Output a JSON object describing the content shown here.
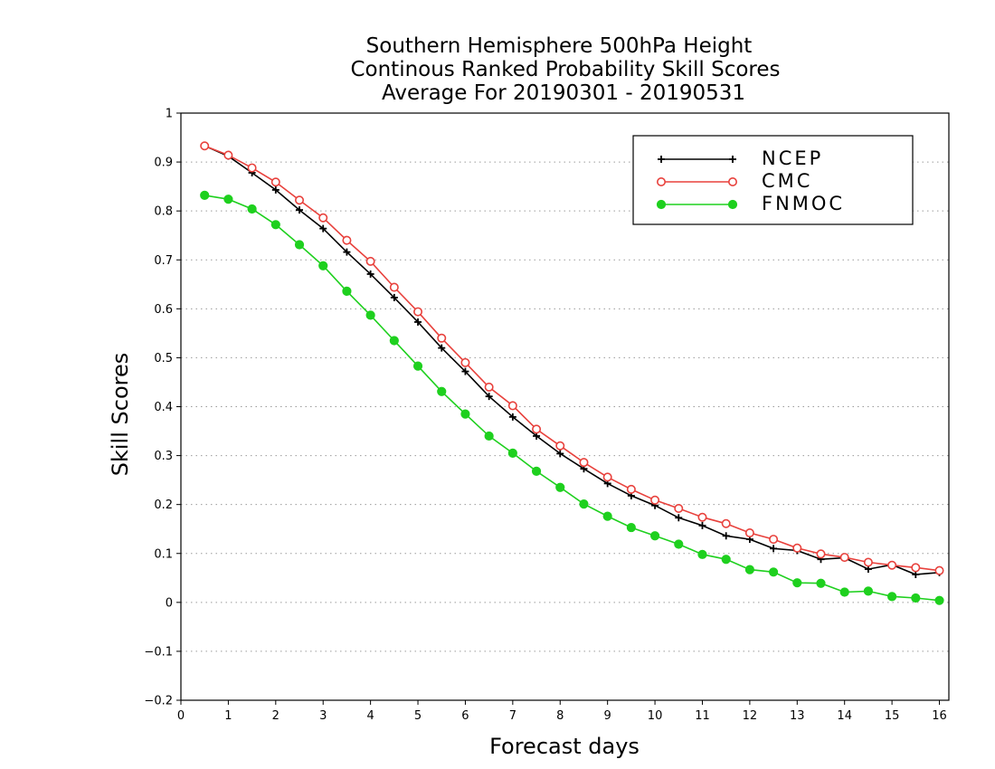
{
  "chart_data": {
    "type": "line",
    "title": [
      "Southern Hemisphere 500hPa Height",
      "Continous Ranked Probability Skill Scores",
      "Average For 20190301 - 20190531"
    ],
    "xlabel": "Forecast days",
    "ylabel": "Skill Scores",
    "xlim": [
      0,
      16.2
    ],
    "ylim": [
      -0.2,
      1
    ],
    "xticks": [
      0,
      1,
      2,
      3,
      4,
      5,
      6,
      7,
      8,
      9,
      10,
      11,
      12,
      13,
      14,
      15,
      16
    ],
    "yticks": [
      -0.2,
      -0.1,
      0,
      0.1,
      0.2,
      0.3,
      0.4,
      0.5,
      0.6,
      0.7,
      0.8,
      0.9,
      1
    ],
    "ytick_labels": [
      "−0.2",
      "−0.1",
      "0",
      "0.1",
      "0.2",
      "0.3",
      "0.4",
      "0.5",
      "0.6",
      "0.7",
      "0.8",
      "0.9",
      "1"
    ],
    "grid": "horizontal dotted",
    "legend_position": "top-right",
    "x": [
      0.5,
      1,
      1.5,
      2,
      2.5,
      3,
      3.5,
      4,
      4.5,
      5,
      5.5,
      6,
      6.5,
      7,
      7.5,
      8,
      8.5,
      9,
      9.5,
      10,
      10.5,
      11,
      11.5,
      12,
      12.5,
      13,
      13.5,
      14,
      14.5,
      15,
      15.5,
      16
    ],
    "series": [
      {
        "name": "NCEP",
        "color": "#000000",
        "marker": "plus",
        "values": [
          0.933,
          0.912,
          0.878,
          0.843,
          0.802,
          0.764,
          0.716,
          0.671,
          0.623,
          0.573,
          0.52,
          0.472,
          0.421,
          0.379,
          0.34,
          0.304,
          0.273,
          0.243,
          0.218,
          0.198,
          0.173,
          0.157,
          0.136,
          0.129,
          0.11,
          0.106,
          0.088,
          0.091,
          0.068,
          0.077,
          0.057,
          0.061
        ]
      },
      {
        "name": "CMC",
        "color": "#e8413c",
        "marker": "open-circle",
        "values": [
          0.933,
          0.914,
          0.888,
          0.859,
          0.822,
          0.786,
          0.74,
          0.697,
          0.644,
          0.594,
          0.54,
          0.49,
          0.44,
          0.402,
          0.354,
          0.32,
          0.286,
          0.256,
          0.231,
          0.209,
          0.192,
          0.174,
          0.161,
          0.142,
          0.129,
          0.111,
          0.099,
          0.092,
          0.082,
          0.076,
          0.071,
          0.065
        ]
      },
      {
        "name": "FNMOC",
        "color": "#1ed01e",
        "marker": "filled-circle",
        "values": [
          0.832,
          0.824,
          0.804,
          0.772,
          0.731,
          0.688,
          0.636,
          0.587,
          0.535,
          0.483,
          0.431,
          0.385,
          0.34,
          0.305,
          0.268,
          0.235,
          0.201,
          0.176,
          0.153,
          0.136,
          0.119,
          0.098,
          0.088,
          0.067,
          0.062,
          0.04,
          0.039,
          0.021,
          0.023,
          0.012,
          0.009,
          0.004
        ]
      }
    ]
  }
}
